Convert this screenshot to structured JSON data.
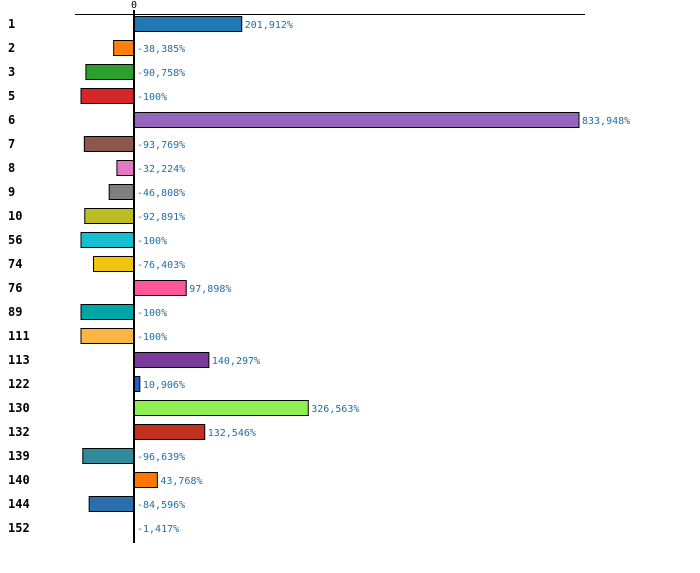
{
  "chart_data": {
    "type": "bar",
    "orientation": "horizontal",
    "zero_tick_label": "0",
    "value_unit": "%",
    "categories": [
      "1",
      "2",
      "3",
      "5",
      "6",
      "7",
      "8",
      "9",
      "10",
      "56",
      "74",
      "76",
      "89",
      "111",
      "113",
      "122",
      "130",
      "132",
      "139",
      "140",
      "144",
      "152"
    ],
    "values": [
      201912,
      -38385,
      -90758,
      -100,
      833948,
      -93769,
      -32224,
      -46808,
      -92891,
      -100,
      -76403,
      97898,
      -100,
      -100,
      140297,
      10906,
      326563,
      132546,
      -96639,
      43768,
      -84596,
      -1417
    ],
    "value_labels": [
      "201,912%",
      "-38,385%",
      "-90,758%",
      "-100%",
      "833,948%",
      "-93,769%",
      "-32,224%",
      "-46,808%",
      "-92,891%",
      "-100%",
      "-76,403%",
      "97,898%",
      "-100%",
      "-100%",
      "140,297%",
      "10,906%",
      "326,563%",
      "132,546%",
      "-96,639%",
      "43,768%",
      "-84,596%",
      "-1,417%"
    ],
    "bar_colors": [
      "#1f77b4",
      "#ff7f0e",
      "#2ca02c",
      "#d62728",
      "#9467bd",
      "#8c564b",
      "#e377c2",
      "#7f7f7f",
      "#bcbd22",
      "#17becf",
      "#f1c40f",
      "#ff5599",
      "#00a6a6",
      "#fbb545",
      "#7a3a9a",
      "#1f5fd0",
      "#8ef050",
      "#c0311e",
      "#2f8a9c",
      "#ff7700",
      "#2a6ead",
      "#999999"
    ],
    "label_color": "#1f6fa6",
    "title": "",
    "xlabel": "",
    "ylabel": ""
  }
}
